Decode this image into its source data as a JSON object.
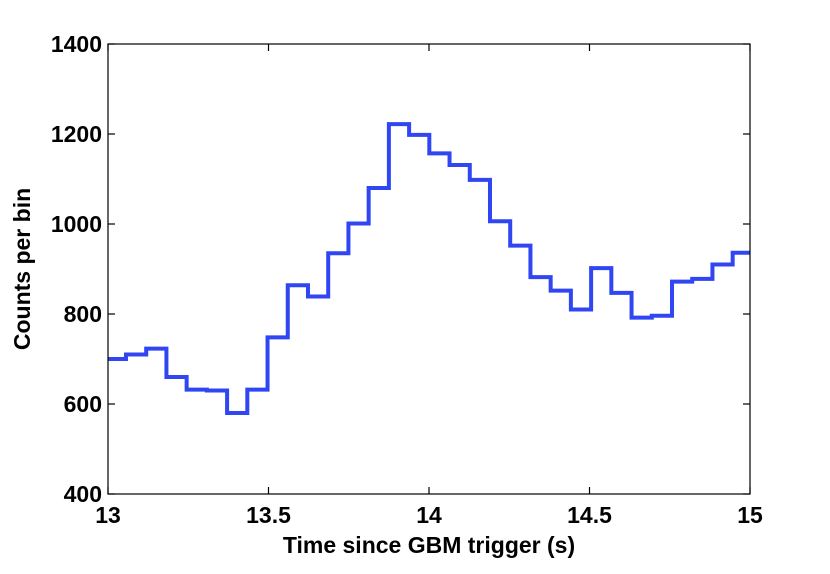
{
  "chart_data": {
    "type": "line",
    "step": "post",
    "title": "",
    "xlabel": "Time since GBM trigger (s)",
    "ylabel": "Counts per bin",
    "xlim": [
      13,
      15
    ],
    "ylim": [
      400,
      1400
    ],
    "xticks": [
      13,
      13.5,
      14,
      14.5,
      15
    ],
    "xtick_labels": [
      "13",
      "13.5",
      "14",
      "14.5",
      "15"
    ],
    "yticks": [
      400,
      600,
      800,
      1000,
      1200,
      1400
    ],
    "ytick_labels": [
      "400",
      "600",
      "800",
      "1000",
      "1200",
      "1400"
    ],
    "grid": false,
    "legend": "none",
    "series": [
      {
        "color": "#2f46f2",
        "x": [
          13.0,
          13.056,
          13.119,
          13.182,
          13.245,
          13.308,
          13.371,
          13.434,
          13.497,
          13.56,
          13.623,
          13.686,
          13.749,
          13.812,
          13.875,
          13.938,
          14.001,
          14.064,
          14.127,
          14.19,
          14.253,
          14.316,
          14.379,
          14.442,
          14.505,
          14.568,
          14.631,
          14.694,
          14.757,
          14.82,
          14.883,
          14.946
        ],
        "values": [
          700,
          710,
          723,
          660,
          632,
          630,
          580,
          632,
          748,
          864,
          839,
          935,
          1001,
          1080,
          1222,
          1198,
          1157,
          1131,
          1098,
          1006,
          952,
          882,
          852,
          810,
          902,
          847,
          792,
          796,
          872,
          878,
          910,
          936
        ]
      }
    ]
  }
}
